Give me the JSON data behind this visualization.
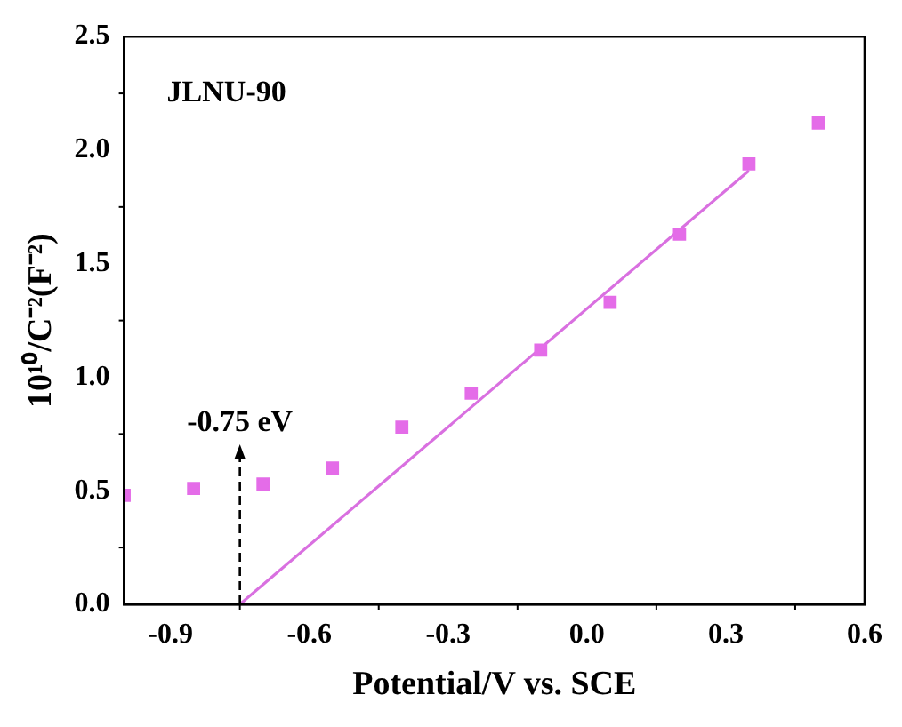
{
  "chart_data": {
    "type": "scatter",
    "xlabel": "Potential/V vs. SCE",
    "ylabel": "10¹⁰/C⁻²(F⁻²)",
    "xlim": [
      -1.0,
      0.6
    ],
    "xticks": [
      -0.9,
      -0.6,
      -0.3,
      {
        "value": 0,
        "label": "0.0"
      },
      0.3,
      0.6
    ],
    "ylim": [
      0,
      2.5
    ],
    "yticks": [
      {
        "value": 0,
        "label": "0.0"
      },
      0.5,
      {
        "value": 1,
        "label": "1.0"
      },
      1.5,
      {
        "value": 2,
        "label": "2.0"
      },
      2.5
    ],
    "grid": false,
    "legend": false,
    "annotations": [
      "JLNU-90",
      {
        "text": "-0.75 eV",
        "x": -0.75,
        "y": 0
      }
    ],
    "series": [
      {
        "marker": "square",
        "color": "#e46ce8",
        "x": [
          -1.0,
          -0.85,
          -0.7,
          -0.55,
          -0.4,
          -0.25,
          -0.1,
          0.05,
          0.2,
          0.35,
          0.5
        ],
        "values": [
          0.48,
          0.51,
          0.53,
          0.6,
          0.78,
          0.93,
          1.12,
          1.33,
          1.63,
          1.94,
          2.12
        ]
      },
      {
        "type": "line",
        "marker": "none",
        "color": "#d970e0",
        "x": [
          -0.75,
          0.35
        ],
        "values": [
          0,
          1.91
        ]
      }
    ]
  }
}
